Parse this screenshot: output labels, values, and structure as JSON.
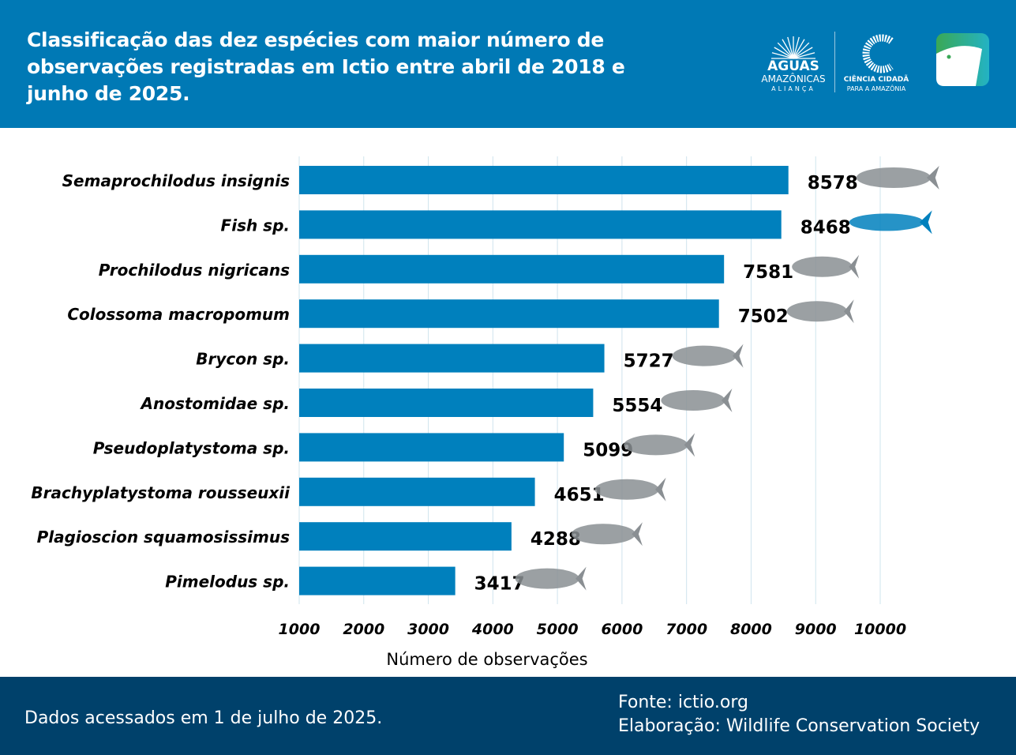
{
  "header": {
    "title": "Classificação das dez espécies com maior número de observações registradas em Ictio entre abril de 2018 e junho de 2025.",
    "logo1": {
      "line1": "AGUAS",
      "line2": "AMAZÔNICAS",
      "line3": "ALIANÇA"
    },
    "logo2": {
      "line1": "CIÊNCIA CIDADÃ",
      "line2": "PARA A AMAZÔNIA"
    },
    "logo3": "ictio-fish-app-icon"
  },
  "chart_data": {
    "type": "bar",
    "orientation": "horizontal",
    "categories": [
      "Semaprochilodus insignis",
      "Fish sp.",
      "Prochilodus nigricans",
      "Colossoma macropomum",
      "Brycon sp.",
      "Anostomidae sp.",
      "Pseudoplatystoma sp.",
      "Brachyplatystoma rousseuxii",
      "Plagioscion squamosissimus",
      "Pimelodus sp."
    ],
    "values": [
      8578,
      8468,
      7581,
      7502,
      5727,
      5554,
      5099,
      4651,
      4288,
      3417
    ],
    "xlabel": "Número de observações",
    "ylabel": "",
    "xlim": [
      1000,
      10000
    ],
    "xticks": [
      1000,
      2000,
      3000,
      4000,
      5000,
      6000,
      7000,
      8000,
      9000,
      10000
    ],
    "grid": true,
    "bar_color": "#0080BD",
    "data_labels": true
  },
  "footer": {
    "date": "Dados acessados em 1 de julho de 2025.",
    "source": "Fonte: ictio.org",
    "credit": "Elaboração: Wildlife Conservation Society"
  },
  "colors": {
    "header": "#0079B5",
    "footer": "#00416B",
    "bar": "#0080BD"
  }
}
